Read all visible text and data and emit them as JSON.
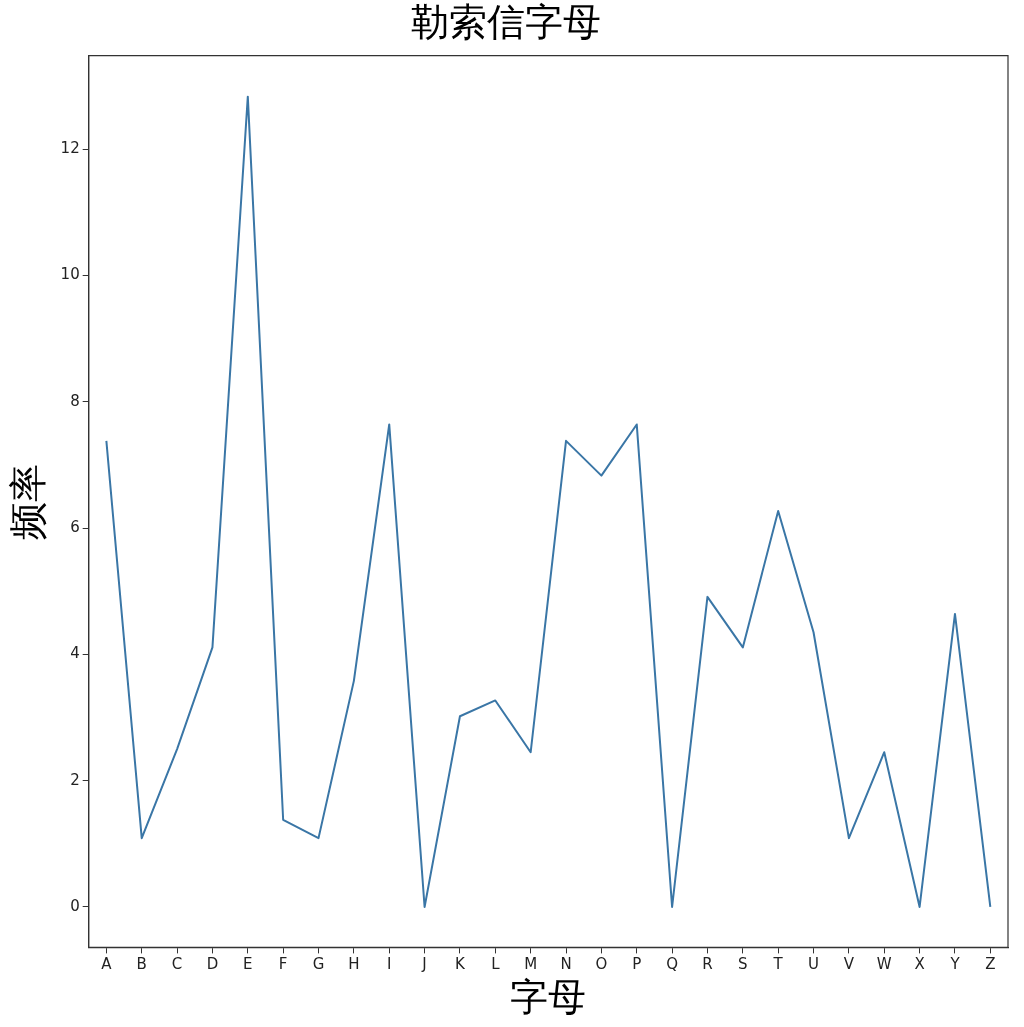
{
  "chart_data": {
    "type": "line",
    "title": "勒索信字母",
    "xlabel": "字母",
    "ylabel": "频率",
    "categories": [
      "A",
      "B",
      "C",
      "D",
      "E",
      "F",
      "G",
      "H",
      "I",
      "J",
      "K",
      "L",
      "M",
      "N",
      "O",
      "P",
      "Q",
      "R",
      "S",
      "T",
      "U",
      "V",
      "W",
      "X",
      "Y",
      "Z"
    ],
    "series": [
      {
        "color": "#3a76a6",
        "values": [
          7.38,
          1.09,
          2.5,
          4.11,
          12.83,
          1.38,
          1.09,
          3.58,
          7.64,
          0,
          3.02,
          3.27,
          2.45,
          7.38,
          6.83,
          7.64,
          0,
          4.91,
          4.11,
          6.27,
          4.35,
          1.09,
          2.45,
          0,
          4.64,
          0
        ]
      }
    ],
    "ylim": [
      -0.64,
      13.48
    ],
    "yticks": [
      0,
      2,
      4,
      6,
      8,
      10,
      12
    ],
    "grid": false,
    "legend": false,
    "marker": "none",
    "line_style": "solid"
  }
}
